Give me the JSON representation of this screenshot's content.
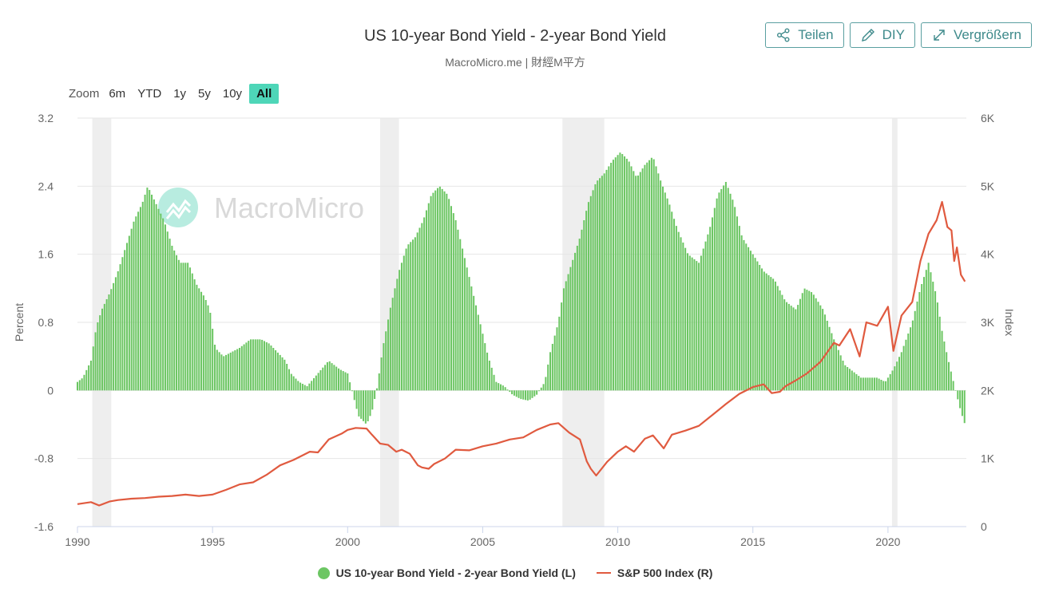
{
  "header": {
    "title": "US 10-year Bond Yield - 2-year Bond Yield",
    "subtitle": "MacroMicro.me | 財經M平方"
  },
  "actions": {
    "share_label": "Teilen",
    "diy_label": "DIY",
    "enlarge_label": "Vergrößern"
  },
  "zoom": {
    "label": "Zoom",
    "options": [
      "6m",
      "YTD",
      "1y",
      "5y",
      "10y",
      "All"
    ],
    "selected": "All"
  },
  "watermark": "MacroMicro",
  "colors": {
    "bars": "#6cc663",
    "sp500": "#e05a3f",
    "recession": "#eeeeee",
    "accent": "#4ed6b8",
    "button_border": "#5a9fa0"
  },
  "chart_data": {
    "type": "bar+line",
    "title": "US 10-year Bond Yield - 2-year Bond Yield",
    "left_axis": {
      "label": "Percent",
      "min": -1.6,
      "max": 3.2,
      "ticks": [
        3.2,
        2.4,
        1.6,
        0.8,
        0,
        -0.8,
        -1.6
      ],
      "tick_labels": [
        "3.2",
        "2.4",
        "1.6",
        "0.8",
        "0",
        "-0.8",
        "-1.6"
      ]
    },
    "right_axis": {
      "label": "Index",
      "min": 0,
      "max": 6000,
      "ticks": [
        6000,
        5000,
        4000,
        3000,
        2000,
        1000,
        0
      ],
      "tick_labels": [
        "6K",
        "5K",
        "4K",
        "3K",
        "2K",
        "1K",
        "0"
      ]
    },
    "x_axis": {
      "min": 1990.0,
      "max": 2022.9,
      "ticks": [
        1990,
        1995,
        2000,
        2005,
        2010,
        2015,
        2020
      ],
      "tick_labels": [
        "1990",
        "1995",
        "2000",
        "2005",
        "2010",
        "2015",
        "2020"
      ]
    },
    "recessions": [
      [
        1990.55,
        1991.25
      ],
      [
        2001.2,
        2001.9
      ],
      [
        2007.95,
        2009.5
      ],
      [
        2020.15,
        2020.35
      ]
    ],
    "series": [
      {
        "name": "US 10-year Bond Yield - 2-year Bond Yield (L)",
        "type": "bar",
        "axis": "left",
        "monthly_interpolated": true,
        "x": [
          1990.0,
          1990.2,
          1990.5,
          1990.7,
          1990.9,
          1991.2,
          1991.5,
          1991.8,
          1992.1,
          1992.4,
          1992.6,
          1992.9,
          1993.2,
          1993.5,
          1993.8,
          1994.1,
          1994.4,
          1994.7,
          1994.9,
          1995.1,
          1995.4,
          1995.7,
          1996.0,
          1996.4,
          1996.8,
          1997.1,
          1997.4,
          1997.7,
          1997.9,
          1998.2,
          1998.5,
          1998.9,
          1999.3,
          1999.7,
          2000.0,
          2000.2,
          2000.4,
          2000.7,
          2000.9,
          2001.1,
          2001.3,
          2001.6,
          2001.9,
          2002.2,
          2002.5,
          2002.8,
          2003.1,
          2003.4,
          2003.7,
          2004.0,
          2004.3,
          2004.6,
          2004.9,
          2005.2,
          2005.5,
          2005.8,
          2006.1,
          2006.4,
          2006.7,
          2007.0,
          2007.3,
          2007.5,
          2007.8,
          2008.0,
          2008.3,
          2008.6,
          2008.9,
          2009.2,
          2009.5,
          2009.8,
          2010.1,
          2010.4,
          2010.7,
          2011.0,
          2011.3,
          2011.6,
          2011.9,
          2012.2,
          2012.6,
          2013.0,
          2013.4,
          2013.7,
          2014.0,
          2014.3,
          2014.6,
          2015.0,
          2015.4,
          2015.8,
          2016.2,
          2016.6,
          2016.9,
          2017.2,
          2017.6,
          2018.0,
          2018.4,
          2018.8,
          2019.0,
          2019.3,
          2019.6,
          2019.9,
          2020.2,
          2020.5,
          2020.9,
          2021.2,
          2021.5,
          2021.8,
          2022.0,
          2022.2,
          2022.35,
          2022.5,
          2022.7,
          2022.85
        ],
        "values": [
          0.1,
          0.15,
          0.35,
          0.75,
          0.95,
          1.15,
          1.4,
          1.7,
          2.0,
          2.2,
          2.4,
          2.2,
          2.0,
          1.7,
          1.5,
          1.5,
          1.25,
          1.1,
          0.95,
          0.5,
          0.4,
          0.45,
          0.5,
          0.6,
          0.6,
          0.55,
          0.45,
          0.35,
          0.2,
          0.1,
          0.05,
          0.2,
          0.35,
          0.25,
          0.2,
          -0.05,
          -0.3,
          -0.4,
          -0.25,
          0.05,
          0.5,
          1.0,
          1.4,
          1.7,
          1.8,
          2.0,
          2.3,
          2.4,
          2.3,
          2.0,
          1.6,
          1.2,
          0.8,
          0.4,
          0.1,
          0.05,
          -0.05,
          -0.1,
          -0.12,
          -0.05,
          0.1,
          0.45,
          0.8,
          1.2,
          1.5,
          1.8,
          2.2,
          2.45,
          2.55,
          2.7,
          2.8,
          2.7,
          2.5,
          2.65,
          2.75,
          2.45,
          2.2,
          1.9,
          1.6,
          1.5,
          1.9,
          2.3,
          2.45,
          2.2,
          1.8,
          1.6,
          1.4,
          1.3,
          1.05,
          0.95,
          1.2,
          1.15,
          0.95,
          0.6,
          0.3,
          0.2,
          0.15,
          0.15,
          0.15,
          0.1,
          0.25,
          0.45,
          0.8,
          1.2,
          1.5,
          1.1,
          0.7,
          0.4,
          0.2,
          0.0,
          -0.25,
          -0.4
        ]
      },
      {
        "name": "S&P 500 Index (R)",
        "type": "line",
        "axis": "right",
        "x": [
          1990.0,
          1990.5,
          1990.8,
          1991.2,
          1991.5,
          1992.0,
          1992.5,
          1993.0,
          1993.5,
          1994.0,
          1994.5,
          1995.0,
          1995.5,
          1996.0,
          1996.5,
          1997.0,
          1997.5,
          1998.0,
          1998.6,
          1998.9,
          1999.3,
          1999.8,
          2000.0,
          2000.3,
          2000.7,
          2000.9,
          2001.2,
          2001.5,
          2001.8,
          2002.0,
          2002.3,
          2002.6,
          2002.75,
          2003.0,
          2003.2,
          2003.6,
          2004.0,
          2004.5,
          2005.0,
          2005.5,
          2006.0,
          2006.5,
          2007.0,
          2007.5,
          2007.8,
          2008.2,
          2008.6,
          2008.85,
          2009.0,
          2009.2,
          2009.6,
          2010.0,
          2010.3,
          2010.6,
          2011.0,
          2011.3,
          2011.7,
          2012.0,
          2012.5,
          2013.0,
          2013.5,
          2014.0,
          2014.5,
          2015.0,
          2015.4,
          2015.7,
          2016.0,
          2016.2,
          2016.6,
          2017.0,
          2017.5,
          2018.0,
          2018.2,
          2018.6,
          2018.95,
          2019.2,
          2019.6,
          2020.0,
          2020.2,
          2020.5,
          2020.9,
          2021.2,
          2021.5,
          2021.8,
          2022.0,
          2022.2,
          2022.35,
          2022.45,
          2022.55,
          2022.7,
          2022.85
        ],
        "values": [
          330,
          360,
          310,
          370,
          390,
          410,
          420,
          440,
          450,
          470,
          450,
          470,
          540,
          620,
          650,
          760,
          900,
          980,
          1100,
          1090,
          1280,
          1370,
          1420,
          1450,
          1440,
          1350,
          1220,
          1200,
          1100,
          1130,
          1070,
          900,
          870,
          850,
          920,
          1000,
          1130,
          1120,
          1180,
          1220,
          1280,
          1310,
          1420,
          1500,
          1520,
          1380,
          1280,
          960,
          850,
          750,
          950,
          1100,
          1180,
          1100,
          1290,
          1340,
          1150,
          1350,
          1410,
          1480,
          1640,
          1800,
          1950,
          2050,
          2090,
          1960,
          1980,
          2060,
          2150,
          2250,
          2420,
          2700,
          2660,
          2900,
          2500,
          3000,
          2950,
          3230,
          2580,
          3100,
          3300,
          3900,
          4300,
          4500,
          4770,
          4400,
          4350,
          3900,
          4100,
          3700,
          3600
        ]
      }
    ]
  },
  "legend": {
    "bar_label": "US 10-year Bond Yield - 2-year Bond Yield (L)",
    "line_label": "S&P 500 Index (R)"
  }
}
